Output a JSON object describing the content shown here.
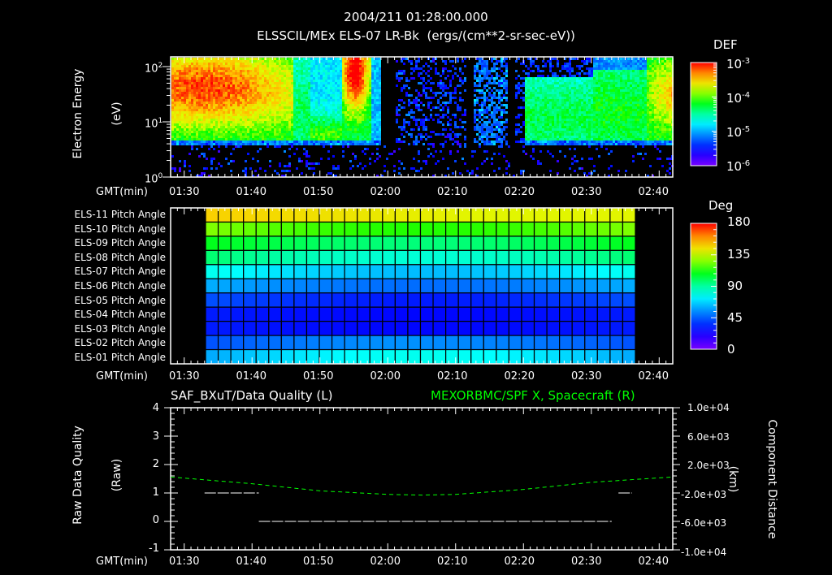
{
  "header": {
    "timestamp": "2004/211 01:28:00.000",
    "subtitle": "ELSSCIL/MEx ELS-07 LR-Bk  (ergs/(cm**2-sr-sec-eV))"
  },
  "colors": {
    "background": "#000000",
    "axis": "#ffffff",
    "spacecraft_line": "#00ff00",
    "quality_line": "#ffffff"
  },
  "time_axis": {
    "label": "GMT(min)",
    "ticks": [
      "01:30",
      "01:40",
      "01:50",
      "02:00",
      "02:10",
      "02:20",
      "02:30",
      "02:40"
    ]
  },
  "panel1": {
    "ylabel_line1": "Electron Energy",
    "ylabel_line2": "(eV)",
    "yticks": [
      {
        "base": "10",
        "exp": "2"
      },
      {
        "base": "10",
        "exp": "1"
      },
      {
        "base": "10",
        "exp": "0"
      }
    ],
    "colorbar": {
      "title": "DEF",
      "ticks": [
        {
          "base": "10",
          "exp": "-3"
        },
        {
          "base": "10",
          "exp": "-4"
        },
        {
          "base": "10",
          "exp": "-5"
        },
        {
          "base": "10",
          "exp": "-6"
        }
      ]
    }
  },
  "panel2": {
    "rows": [
      "ELS-11 Pitch Angle",
      "ELS-10 Pitch Angle",
      "ELS-09 Pitch Angle",
      "ELS-08 Pitch Angle",
      "ELS-07 Pitch Angle",
      "ELS-06 Pitch Angle",
      "ELS-05 Pitch Angle",
      "ELS-04 Pitch Angle",
      "ELS-03 Pitch Angle",
      "ELS-02 Pitch Angle",
      "ELS-01 Pitch Angle"
    ],
    "colorbar": {
      "title": "Deg",
      "ticks": [
        "180",
        "135",
        "90",
        "45",
        "0"
      ]
    }
  },
  "panel3": {
    "left_title": "SAF_BXuT/Data Quality (L)",
    "right_title": "MEXORBMC/SPF X, Spacecraft (R)",
    "ylabel_left_line1": "Raw Data Quality",
    "ylabel_left_line2": "(Raw)",
    "ylabel_right_line1": "Component Distance",
    "ylabel_right_line2": "(km)",
    "left_ticks": [
      "4",
      "3",
      "2",
      "1",
      "0",
      "-1"
    ],
    "right_ticks": [
      "1.0e+04",
      "6.0e+03",
      "2.0e+03",
      "-2.0e+03",
      "-6.0e+03",
      "-1.0e+04"
    ]
  },
  "chart_data": [
    {
      "type": "heatmap",
      "title": "ELSSCIL/MEx ELS-07 LR-Bk (ergs/(cm**2-sr-sec-eV))",
      "xlabel": "GMT(min)",
      "ylabel": "Electron Energy (eV)",
      "x_range": [
        "01:28",
        "02:42"
      ],
      "y_scale": "log",
      "ylim": [
        1,
        150
      ],
      "colorbar": {
        "label": "DEF",
        "scale": "log",
        "range": [
          1e-06,
          0.001
        ]
      },
      "features": [
        {
          "time": "01:28-01:46",
          "energy_eV": "10-100",
          "level": "high (~3e-4)"
        },
        {
          "time": "01:53-01:56",
          "energy_eV": "20-150",
          "level": "peak (~8e-4)"
        },
        {
          "time": "02:01-02:13",
          "energy_eV": "all",
          "level": "low/sparse (~1e-6)"
        },
        {
          "time": "02:13-02:28",
          "energy_eV": "5-30",
          "level": "moderate (~5e-5)"
        },
        {
          "time": "02:30-02:42",
          "energy_eV": "15-80",
          "level": "high (~3e-4)"
        }
      ]
    },
    {
      "type": "heatmap",
      "title": "Pitch Angle",
      "xlabel": "GMT(min)",
      "categories": [
        "ELS-11",
        "ELS-10",
        "ELS-09",
        "ELS-08",
        "ELS-07",
        "ELS-06",
        "ELS-05",
        "ELS-04",
        "ELS-03",
        "ELS-02",
        "ELS-01"
      ],
      "x_range_data": [
        "01:33",
        "02:36"
      ],
      "colorbar": {
        "label": "Deg",
        "range": [
          0,
          180
        ]
      },
      "approx_values_deg": {
        "ELS-11": [
          150,
          130
        ],
        "ELS-10": [
          125,
          120
        ],
        "ELS-09": [
          105,
          100
        ],
        "ELS-08": [
          95,
          85
        ],
        "ELS-07": [
          70,
          75
        ],
        "ELS-06": [
          60,
          55
        ],
        "ELS-05": [
          40,
          35
        ],
        "ELS-04": [
          30,
          30
        ],
        "ELS-03": [
          30,
          32
        ],
        "ELS-02": [
          40,
          55
        ],
        "ELS-01": [
          60,
          70
        ]
      }
    },
    {
      "type": "line",
      "title_left": "SAF_BXuT/Data Quality (L)",
      "title_right": "MEXORBMC/SPF X, Spacecraft (R)",
      "xlabel": "GMT(min)",
      "ylabel_left": "Raw Data Quality (Raw)",
      "ylabel_right": "Component Distance (km)",
      "ylim_left": [
        -1,
        4
      ],
      "ylim_right": [
        -10000,
        10000
      ],
      "series": [
        {
          "name": "Data Quality",
          "axis": "left",
          "color": "#ffffff",
          "segments": [
            {
              "x": [
                "01:33",
                "01:41"
              ],
              "y": 1
            },
            {
              "x": [
                "01:41",
                "02:33"
              ],
              "y": 0
            },
            {
              "x": [
                "02:34",
                "02:36"
              ],
              "y": 1
            }
          ]
        },
        {
          "name": "SPF X, Spacecraft",
          "axis": "right",
          "color": "#00ff00",
          "style": "dashed",
          "x": [
            "01:28",
            "01:40",
            "01:50",
            "02:00",
            "02:05",
            "02:10",
            "02:20",
            "02:30",
            "02:42"
          ],
          "y": [
            250,
            -700,
            -1700,
            -2200,
            -2300,
            -2200,
            -1500,
            -500,
            250
          ]
        }
      ]
    }
  ]
}
